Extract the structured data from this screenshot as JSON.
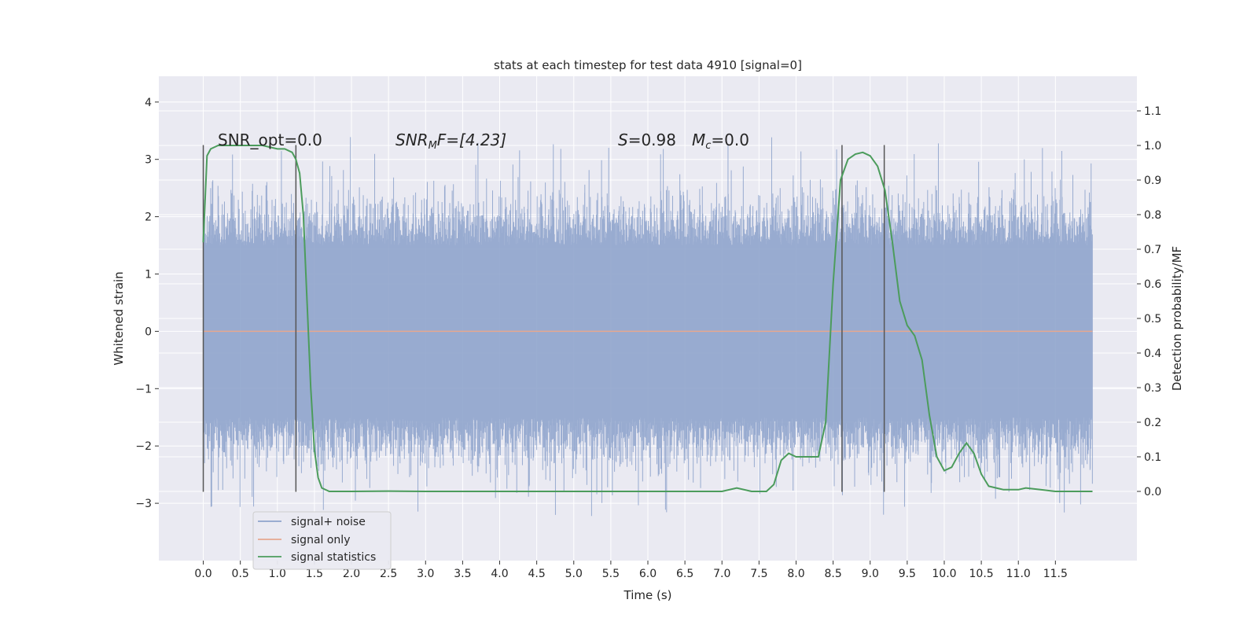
{
  "chart_data": {
    "type": "line",
    "title": "stats at each timestep for test data 4910 [signal=0]",
    "xlabel": "Time (s)",
    "ylabel": "Whitened strain",
    "y2label": "Detection probability/MF",
    "xlim": [
      -0.6,
      12.6
    ],
    "ylim": [
      -4.0,
      4.45
    ],
    "y2lim": [
      -0.2,
      1.2
    ],
    "xticks": [
      "0.0",
      "0.5",
      "1.0",
      "1.5",
      "2.0",
      "2.5",
      "3.0",
      "3.5",
      "4.0",
      "4.5",
      "5.0",
      "5.5",
      "6.0",
      "6.5",
      "7.0",
      "7.5",
      "8.0",
      "8.5",
      "9.0",
      "9.5",
      "10.0",
      "10.5",
      "11.0",
      "11.5"
    ],
    "yticks": [
      "4",
      "3",
      "2",
      "1",
      "0",
      "−1",
      "−2",
      "−3"
    ],
    "y2ticks": [
      "1.1",
      "1.0",
      "0.9",
      "0.8",
      "0.7",
      "0.6",
      "0.5",
      "0.4",
      "0.3",
      "0.2",
      "0.1",
      "0.0"
    ],
    "grid": true,
    "legend_position": "lower-left",
    "annotations": {
      "snr_opt": "SNR_opt=0.0",
      "snr_mf": "SNR",
      "snr_mf_sub": "M",
      "snr_mf_rest": "F=[4.23]",
      "s_label": "S",
      "s_value": "=0.98",
      "mc_label": "M",
      "mc_sub": "c",
      "mc_value": "=0.0"
    },
    "legend": [
      {
        "label": "signal+ noise",
        "color": "#8fa4cc"
      },
      {
        "label": "signal only",
        "color": "#e6a88f"
      },
      {
        "label": "signal statistics",
        "color": "#4c9c5c"
      }
    ],
    "colors": {
      "background": "#eaeaf2",
      "grid": "#ffffff",
      "noise": "#8fa4cc",
      "signal": "#e6a88f",
      "stats": "#4c9c5c",
      "vlines": "#555555"
    },
    "series": [
      {
        "name": "signal+ noise",
        "note_envelope_range": [
          -1.6,
          1.5
        ],
        "x": [
          0.0,
          12.0
        ],
        "y_upper_typical": [
          1.5,
          2.4
        ],
        "y_lower_typical": [
          -1.5,
          -2.3
        ]
      },
      {
        "name": "signal only",
        "x": [
          0.0,
          12.0
        ],
        "y": [
          0.0,
          0.0
        ]
      },
      {
        "name": "signal statistics",
        "x": [
          0.0,
          0.05,
          0.1,
          0.2,
          0.3,
          0.5,
          0.8,
          1.0,
          1.1,
          1.2,
          1.25,
          1.3,
          1.35,
          1.4,
          1.45,
          1.5,
          1.55,
          1.6,
          1.7,
          2.0,
          2.5,
          3.0,
          4.0,
          5.0,
          6.0,
          6.5,
          7.0,
          7.2,
          7.4,
          7.6,
          7.7,
          7.8,
          7.9,
          8.0,
          8.2,
          8.3,
          8.4,
          8.5,
          8.6,
          8.7,
          8.8,
          8.9,
          9.0,
          9.1,
          9.2,
          9.3,
          9.4,
          9.5,
          9.6,
          9.7,
          9.8,
          9.9,
          10.0,
          10.1,
          10.2,
          10.3,
          10.4,
          10.5,
          10.6,
          10.8,
          11.0,
          11.1,
          11.3,
          11.5,
          12.0
        ],
        "y": [
          0.72,
          0.97,
          0.99,
          1.0,
          1.0,
          1.0,
          1.0,
          0.99,
          0.99,
          0.98,
          0.96,
          0.92,
          0.8,
          0.55,
          0.3,
          0.12,
          0.04,
          0.01,
          0.0,
          0.0,
          0.001,
          0.0,
          0.0,
          0.0,
          0.0,
          0.0,
          0.0,
          0.01,
          0.0,
          0.0,
          0.02,
          0.09,
          0.11,
          0.1,
          0.1,
          0.1,
          0.2,
          0.6,
          0.9,
          0.96,
          0.975,
          0.98,
          0.97,
          0.94,
          0.87,
          0.72,
          0.55,
          0.48,
          0.45,
          0.38,
          0.22,
          0.1,
          0.06,
          0.07,
          0.11,
          0.14,
          0.11,
          0.05,
          0.015,
          0.005,
          0.005,
          0.01,
          0.005,
          0.0,
          0.0
        ]
      }
    ],
    "vertical_lines": [
      0.0,
      1.25,
      8.62,
      9.19
    ]
  }
}
